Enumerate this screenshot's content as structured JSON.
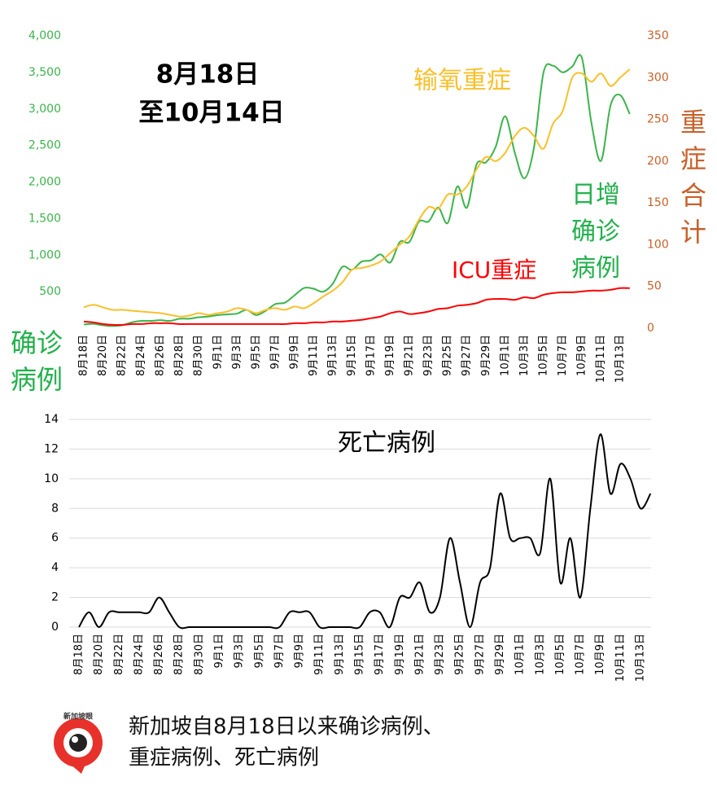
{
  "chart_data": [
    {
      "type": "line",
      "title": [
        "8月18日",
        "至10月14日"
      ],
      "ylabel": "确诊病例",
      "y2label": "重症合计",
      "categories": [
        "8月18日",
        null,
        "8月20日",
        null,
        "8月22日",
        null,
        "8月24日",
        null,
        "8月26日",
        null,
        "8月28日",
        null,
        "8月30日",
        null,
        "9月1日",
        null,
        "9月3日",
        null,
        "9月5日",
        null,
        "9月7日",
        null,
        "9月9日",
        null,
        "9月11日",
        null,
        "9月13日",
        null,
        "9月15日",
        null,
        "9月17日",
        null,
        "9月19日",
        null,
        "9月21日",
        null,
        "9月23日",
        null,
        "9月25日",
        null,
        "9月27日",
        null,
        "9月29日",
        null,
        "10月1日",
        null,
        "10月3日",
        null,
        "10月5日",
        null,
        "10月7日",
        null,
        "10月9日",
        null,
        "10月11日",
        null,
        "10月13日",
        null
      ],
      "ylim": [
        0,
        4000
      ],
      "yticks": [
        500,
        {
          "value": 1000,
          "label": "1,000"
        },
        {
          "value": 1500,
          "label": "1,500"
        },
        {
          "value": 2000,
          "label": "2,000"
        },
        {
          "value": 2500,
          "label": "2,500"
        },
        {
          "value": 3000,
          "label": "3,000"
        },
        {
          "value": 3500,
          "label": "3,500"
        },
        {
          "value": 4000,
          "label": "4,000"
        }
      ],
      "y2lim": [
        0,
        350
      ],
      "y2ticks": [
        0,
        50,
        100,
        150,
        200,
        250,
        300,
        350
      ],
      "grid": false,
      "series": [
        {
          "name": "日增确诊病例",
          "color": "#3cb44b",
          "axis": "y",
          "values": [
            50,
            60,
            40,
            30,
            40,
            80,
            100,
            100,
            110,
            100,
            130,
            130,
            150,
            160,
            180,
            190,
            200,
            250,
            180,
            240,
            330,
            350,
            450,
            550,
            540,
            500,
            610,
            840,
            800,
            910,
            930,
            1010,
            900,
            1180,
            1180,
            1460,
            1460,
            1650,
            1440,
            1940,
            1650,
            2240,
            2270,
            2480,
            2900,
            2400,
            2050,
            2470,
            3500,
            3590,
            3500,
            3580,
            3700,
            2810,
            2290,
            3050,
            3190,
            2930
          ]
        },
        {
          "name": "输氧重症",
          "color": "#f9c02a",
          "axis": "y2",
          "values": [
            25,
            28,
            25,
            22,
            22,
            21,
            20,
            19,
            18,
            16,
            14,
            15,
            18,
            16,
            18,
            20,
            24,
            22,
            18,
            22,
            24,
            22,
            26,
            24,
            30,
            38,
            45,
            55,
            70,
            72,
            75,
            80,
            90,
            100,
            110,
            130,
            145,
            143,
            160,
            160,
            170,
            190,
            205,
            200,
            210,
            230,
            240,
            230,
            215,
            245,
            260,
            300,
            305,
            295,
            305,
            290,
            300,
            310
          ]
        },
        {
          "name": "ICU重症",
          "color": "#ff0000",
          "axis": "y2",
          "values": [
            8,
            7,
            5,
            4,
            4,
            5,
            5,
            6,
            6,
            6,
            5,
            5,
            5,
            5,
            5,
            5,
            5,
            5,
            5,
            5,
            5,
            5,
            6,
            6,
            7,
            7,
            8,
            8,
            9,
            10,
            12,
            14,
            18,
            20,
            17,
            18,
            20,
            23,
            24,
            27,
            28,
            30,
            34,
            35,
            35,
            34,
            37,
            36,
            40,
            42,
            43,
            43,
            44,
            45,
            45,
            46,
            48,
            48
          ]
        }
      ]
    },
    {
      "type": "line",
      "categories": [
        "8月18日",
        null,
        "8月20日",
        null,
        "8月22日",
        null,
        "8月24日",
        null,
        "8月26日",
        null,
        "8月28日",
        null,
        "8月30日",
        null,
        "9月1日",
        null,
        "9月3日",
        null,
        "9月5日",
        null,
        "9月7日",
        null,
        "9月9日",
        null,
        "9月11日",
        null,
        "9月13日",
        null,
        "9月15日",
        null,
        "9月17日",
        null,
        "9月19日",
        null,
        "9月21日",
        null,
        "9月23日",
        null,
        "9月25日",
        null,
        "9月27日",
        null,
        "9月29日",
        null,
        "10月1日",
        null,
        "10月3日",
        null,
        "10月5日",
        null,
        "10月7日",
        null,
        "10月9日",
        null,
        "10月11日",
        null,
        "10月13日",
        null
      ],
      "ylim": [
        0,
        14
      ],
      "yticks": [
        0,
        2,
        4,
        6,
        8,
        10,
        12,
        14
      ],
      "grid": true,
      "series": [
        {
          "name": "死亡病例",
          "color": "#000000",
          "values": [
            0,
            1,
            0,
            1,
            1,
            1,
            1,
            1,
            2,
            1,
            0,
            0,
            0,
            0,
            0,
            0,
            0,
            0,
            0,
            0,
            0,
            1,
            1,
            1,
            0,
            0,
            0,
            0,
            0,
            1,
            1,
            0,
            2,
            2,
            3,
            1,
            2,
            6,
            3,
            0,
            3,
            4,
            9,
            6,
            6,
            6,
            5,
            10,
            3,
            6,
            2,
            8,
            13,
            9,
            11,
            10,
            8,
            9
          ]
        }
      ]
    }
  ],
  "footer": {
    "logo_text": "新加坡眼",
    "caption": [
      "新加坡自8月18日以来确诊病例、",
      "重症病例、死亡病例"
    ]
  }
}
